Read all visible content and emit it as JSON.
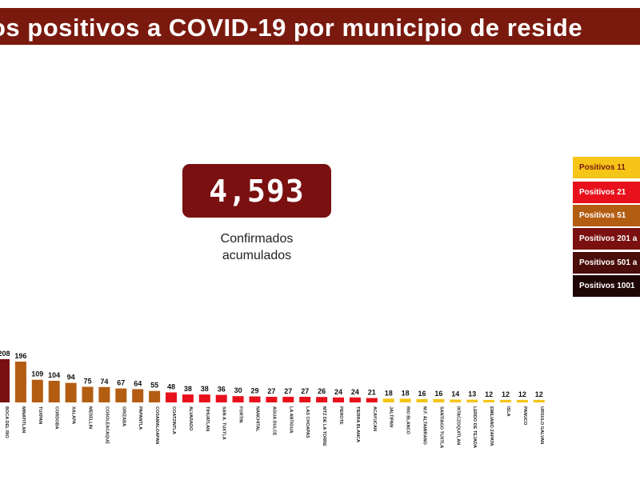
{
  "title": "os positivos a COVID-19  por municipio de reside",
  "total": {
    "value": "4,593",
    "caption_line1": "Confirmados",
    "caption_line2": "acumulados"
  },
  "legend": [
    {
      "label": "Positivos 11",
      "color": "#f5c518",
      "text_color": "#7a1a0e"
    },
    {
      "label": "Positivos 21",
      "color": "#e8111b",
      "text_color": "#ffffff"
    },
    {
      "label": "Positivos 51",
      "color": "#b35d12",
      "text_color": "#ffffff"
    },
    {
      "label": "Positivos 201 a",
      "color": "#7a1010",
      "text_color": "#ffffff"
    },
    {
      "label": "Positivos 501 a",
      "color": "#4a0d0a",
      "text_color": "#ffffff"
    },
    {
      "label": "Positivos 1001",
      "color": "#1f0605",
      "text_color": "#ffffff"
    }
  ],
  "chart_data": {
    "type": "bar",
    "categories": [
      "BOCA DEL RIO",
      "MINATITLAN",
      "TUXPAN",
      "CORDOBA",
      "XALAPA",
      "MEDELLIN",
      "COSOLEACAQUE",
      "ORIZABA",
      "PAPANTLA",
      "COSAMALOAPAN",
      "COATZINTLA",
      "ALVARADO",
      "TIHUATLAN",
      "SAN A. TUXTLA",
      "FORTIN",
      "NANCHITAL",
      "AGUA DULCE",
      "LA ANTIGUA",
      "LAS CHOAPAS",
      "MTZ DE LA TORRE",
      "PEROTE",
      "TIERRA BLANCA",
      "ACAYUCAN",
      "JALTIPAN",
      "RIO BLANCO",
      "M.F. ALTAMIRANO",
      "SANTIAGO TUXTLA",
      "IXTACZOQUITLAN",
      "LERDO DE TEJADA",
      "EMILIANO ZAPATA",
      "ISLA",
      "PANUCO",
      "URSULO GALVAN"
    ],
    "values": [
      208,
      196,
      109,
      104,
      94,
      75,
      74,
      67,
      64,
      55,
      48,
      38,
      38,
      36,
      30,
      29,
      27,
      27,
      27,
      26,
      24,
      24,
      21,
      18,
      18,
      16,
      16,
      14,
      13,
      12,
      12,
      12,
      12
    ],
    "colors": [
      "#7a1010",
      "#b35d12",
      "#b35d12",
      "#b35d12",
      "#b35d12",
      "#b35d12",
      "#b35d12",
      "#b35d12",
      "#b35d12",
      "#b35d12",
      "#e8111b",
      "#e8111b",
      "#e8111b",
      "#e8111b",
      "#e8111b",
      "#e8111b",
      "#e8111b",
      "#e8111b",
      "#e8111b",
      "#e8111b",
      "#e8111b",
      "#e8111b",
      "#e8111b",
      "#f5c518",
      "#f5c518",
      "#f5c518",
      "#f5c518",
      "#f5c518",
      "#f5c518",
      "#f5c518",
      "#f5c518",
      "#f5c518",
      "#f5c518"
    ],
    "value_labels": [
      "208",
      "196",
      "109",
      "104",
      "94",
      "75",
      "74",
      "67",
      "64",
      "55",
      "48",
      "38",
      "38",
      "36",
      "30",
      "29",
      "27",
      "27",
      "27",
      "26",
      "24",
      "24",
      "21",
      "18",
      "18",
      "16",
      "16",
      "14",
      "13",
      "12",
      "12",
      "12",
      "12"
    ],
    "ylim": [
      0,
      250
    ],
    "grid": false,
    "legend_position": "right"
  }
}
